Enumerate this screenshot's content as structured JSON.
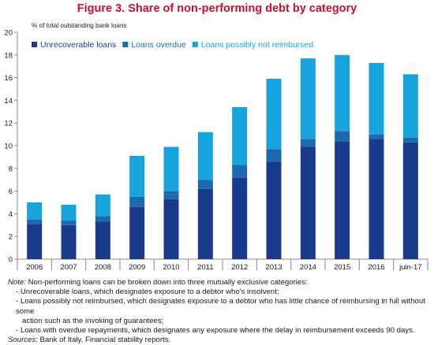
{
  "title": "Figure 3. Share of non-performing debt by category",
  "chart_data": {
    "type": "bar",
    "stacked": true,
    "categories": [
      "2006",
      "2007",
      "2008",
      "2009",
      "2010",
      "2011",
      "2012",
      "2013",
      "2014",
      "2015",
      "2016",
      "juin-17"
    ],
    "series": [
      {
        "name": "Unrecoverable loans",
        "color": "#1a3a8c",
        "values": [
          3.1,
          3.0,
          3.3,
          4.6,
          5.3,
          6.2,
          7.2,
          8.6,
          9.9,
          10.4,
          10.6,
          10.3
        ]
      },
      {
        "name": "Loans overdue",
        "color": "#1b6ab0",
        "values": [
          0.4,
          0.4,
          0.5,
          0.9,
          0.7,
          0.8,
          1.1,
          1.1,
          0.7,
          0.9,
          0.4,
          0.4
        ]
      },
      {
        "name": "Loans possibly not reimbursed",
        "color": "#17a3de",
        "values": [
          1.5,
          1.4,
          1.9,
          3.6,
          3.9,
          4.2,
          5.1,
          6.2,
          7.1,
          6.7,
          6.3,
          5.6
        ]
      }
    ],
    "ylabel": "% of total outstanding bank loans",
    "ylim": [
      0,
      20
    ],
    "yticks": [
      0,
      2,
      4,
      6,
      8,
      10,
      12,
      14,
      16,
      18,
      20
    ],
    "grid": false,
    "legend_position": "top-left"
  },
  "notes": {
    "intro_label": "Note:",
    "intro_text": " Non-performing loans can be broken down into three mutually exclusive categories:",
    "bullet1": "- Unrecoverable loans, which designates exposure to a debtor who's insolvent;",
    "bullet2": "- Loans possibly not reimbursed, which designates exposure to a debtor who has little chance of reimbursing in full without some",
    "bullet2_cont": "action such as the invoking of guarantees;",
    "bullet3": "- Loans with overdue repayments, which designates any exposure where the delay in reimbursement exceeds 90 days.",
    "sources_label": "Sources:",
    "sources_text": " Bank of Italy, Financial stability reports."
  }
}
